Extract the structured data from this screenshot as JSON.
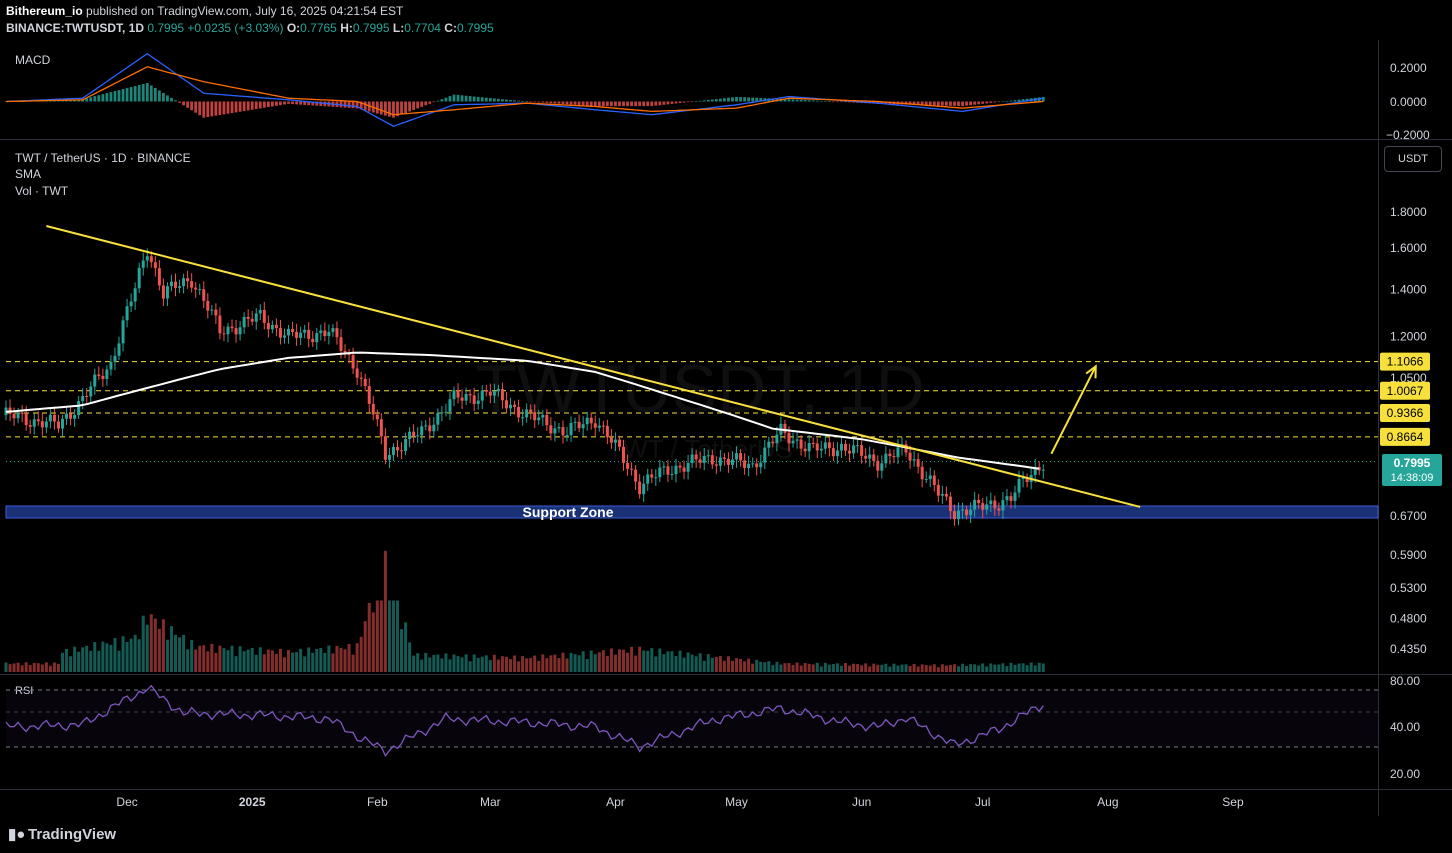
{
  "header": {
    "author": "Bithereum_io",
    "published_text": "published on TradingView.com, July 16, 2025 04:21:54 EST",
    "symbol": "BINANCE:TWTUSDT, 1D",
    "last": "0.7995",
    "change": "+0.0235 (+3.03%)",
    "o_label": "O:",
    "o": "0.7765",
    "h_label": "H:",
    "h": "0.7995",
    "l_label": "L:",
    "l": "0.7704",
    "c_label": "C:",
    "c": "0.7995"
  },
  "macd": {
    "label": "MACD",
    "ticks": [
      "0.2000",
      "0.0000",
      "−0.2000"
    ]
  },
  "main": {
    "title": "TWT / TetherUS · 1D · BINANCE",
    "sma_label": "SMA",
    "vol_label": "Vol · TWT",
    "currency_button": "USDT",
    "watermark": "TWTUSDT, 1D",
    "watermark_sub": "TWT / TetherUS",
    "support_label": "Support Zone",
    "current_price": "0.7995",
    "countdown": "14:38:09",
    "price_ticks": [
      "1.8000",
      "1.6000",
      "1.4000",
      "1.2000",
      "1.0500",
      "0.6700",
      "0.5900",
      "0.5300",
      "0.4800",
      "0.4350"
    ],
    "levels": [
      "1.1066",
      "1.0067",
      "0.9366",
      "0.8664"
    ]
  },
  "rsi": {
    "label": "RSI",
    "ticks": [
      "80.00",
      "40.00",
      "20.00"
    ]
  },
  "time_axis": [
    "Dec",
    "2025",
    "Feb",
    "Mar",
    "Apr",
    "May",
    "Jun",
    "Jul",
    "Aug",
    "Sep"
  ],
  "footer": {
    "brand": "TradingView"
  },
  "colors": {
    "up": "#26a69a",
    "down": "#ef5350",
    "trendline": "#f7e03c",
    "sma": "#ffffff",
    "level_label_bg": "#f7e03c",
    "support_zone": "#1e3a8a",
    "macd_line": "#2962ff",
    "signal_line": "#ff6d00",
    "rsi": "#7e57c2"
  },
  "chart_data": {
    "type": "candlestick",
    "symbol": "TWTUSDT",
    "x_range": [
      "2024-11-01",
      "2025-09-30"
    ],
    "y_range": [
      0.4,
      1.95
    ],
    "y_scale": "log",
    "horizontal_levels": [
      1.1066,
      1.0067,
      0.9366,
      0.8664
    ],
    "support_zone": [
      0.665,
      0.695
    ],
    "trendline": {
      "from": {
        "date": "2024-11-11",
        "price": 1.72
      },
      "to": {
        "date": "2025-08-09",
        "price": 0.69
      }
    },
    "projection_arrow": {
      "from": {
        "date": "2025-07-18",
        "price": 0.82
      },
      "to": {
        "date": "2025-07-29",
        "price": 1.09
      }
    },
    "close_series": [
      {
        "date": "2024-11-01",
        "close": 0.93
      },
      {
        "date": "2024-11-14",
        "close": 0.9
      },
      {
        "date": "2024-11-20",
        "close": 0.98
      },
      {
        "date": "2024-11-27",
        "close": 1.1
      },
      {
        "date": "2024-12-03",
        "close": 1.4
      },
      {
        "date": "2024-12-06",
        "close": 1.6
      },
      {
        "date": "2024-12-10",
        "close": 1.38
      },
      {
        "date": "2024-12-17",
        "close": 1.45
      },
      {
        "date": "2024-12-24",
        "close": 1.22
      },
      {
        "date": "2025-01-03",
        "close": 1.28
      },
      {
        "date": "2025-01-10",
        "close": 1.2
      },
      {
        "date": "2025-01-20",
        "close": 1.22
      },
      {
        "date": "2025-01-27",
        "close": 1.08
      },
      {
        "date": "2025-02-03",
        "close": 0.82
      },
      {
        "date": "2025-02-12",
        "close": 0.88
      },
      {
        "date": "2025-02-20",
        "close": 0.98
      },
      {
        "date": "2025-03-01",
        "close": 1.0
      },
      {
        "date": "2025-03-10",
        "close": 0.93
      },
      {
        "date": "2025-03-20",
        "close": 0.88
      },
      {
        "date": "2025-03-27",
        "close": 0.92
      },
      {
        "date": "2025-04-07",
        "close": 0.74
      },
      {
        "date": "2025-04-14",
        "close": 0.78
      },
      {
        "date": "2025-04-25",
        "close": 0.81
      },
      {
        "date": "2025-05-05",
        "close": 0.79
      },
      {
        "date": "2025-05-12",
        "close": 0.88
      },
      {
        "date": "2025-05-20",
        "close": 0.83
      },
      {
        "date": "2025-05-27",
        "close": 0.84
      },
      {
        "date": "2025-06-05",
        "close": 0.8
      },
      {
        "date": "2025-06-12",
        "close": 0.83
      },
      {
        "date": "2025-06-20",
        "close": 0.72
      },
      {
        "date": "2025-06-24",
        "close": 0.68
      },
      {
        "date": "2025-07-01",
        "close": 0.69
      },
      {
        "date": "2025-07-08",
        "close": 0.71
      },
      {
        "date": "2025-07-12",
        "close": 0.76
      },
      {
        "date": "2025-07-16",
        "close": 0.7995
      }
    ],
    "sma_series": [
      {
        "date": "2024-11-01",
        "value": 0.94
      },
      {
        "date": "2024-11-20",
        "value": 0.96
      },
      {
        "date": "2024-12-10",
        "value": 1.03
      },
      {
        "date": "2024-12-24",
        "value": 1.08
      },
      {
        "date": "2025-01-10",
        "value": 1.12
      },
      {
        "date": "2025-01-27",
        "value": 1.14
      },
      {
        "date": "2025-02-15",
        "value": 1.13
      },
      {
        "date": "2025-03-10",
        "value": 1.11
      },
      {
        "date": "2025-03-27",
        "value": 1.07
      },
      {
        "date": "2025-04-15",
        "value": 0.99
      },
      {
        "date": "2025-05-10",
        "value": 0.89
      },
      {
        "date": "2025-06-01",
        "value": 0.86
      },
      {
        "date": "2025-06-25",
        "value": 0.81
      },
      {
        "date": "2025-07-16",
        "value": 0.78
      }
    ],
    "volume_series": [
      {
        "date": "2024-11-15",
        "vol": 0.35
      },
      {
        "date": "2024-12-03",
        "vol": 0.6
      },
      {
        "date": "2024-12-06",
        "vol": 1.0
      },
      {
        "date": "2024-12-18",
        "vol": 0.45
      },
      {
        "date": "2025-01-10",
        "vol": 0.35
      },
      {
        "date": "2025-01-27",
        "vol": 0.45
      },
      {
        "date": "2025-02-03",
        "vol": 2.0
      },
      {
        "date": "2025-02-10",
        "vol": 0.3
      },
      {
        "date": "2025-03-10",
        "vol": 0.25
      },
      {
        "date": "2025-04-07",
        "vol": 0.4
      },
      {
        "date": "2025-05-12",
        "vol": 0.15
      },
      {
        "date": "2025-06-20",
        "vol": 0.12
      },
      {
        "date": "2025-07-16",
        "vol": 0.15
      }
    ],
    "rsi_series": [
      {
        "date": "2024-11-01",
        "value": 48
      },
      {
        "date": "2024-11-20",
        "value": 50
      },
      {
        "date": "2024-12-06",
        "value": 82
      },
      {
        "date": "2024-12-15",
        "value": 60
      },
      {
        "date": "2025-01-05",
        "value": 58
      },
      {
        "date": "2025-01-20",
        "value": 55
      },
      {
        "date": "2025-01-28",
        "value": 38
      },
      {
        "date": "2025-02-03",
        "value": 27
      },
      {
        "date": "2025-02-18",
        "value": 55
      },
      {
        "date": "2025-03-10",
        "value": 52
      },
      {
        "date": "2025-03-27",
        "value": 48
      },
      {
        "date": "2025-04-07",
        "value": 31
      },
      {
        "date": "2025-04-25",
        "value": 54
      },
      {
        "date": "2025-05-12",
        "value": 64
      },
      {
        "date": "2025-05-27",
        "value": 52
      },
      {
        "date": "2025-06-05",
        "value": 48
      },
      {
        "date": "2025-06-12",
        "value": 56
      },
      {
        "date": "2025-06-24",
        "value": 32
      },
      {
        "date": "2025-07-05",
        "value": 46
      },
      {
        "date": "2025-07-16",
        "value": 68
      }
    ],
    "macd_series": [
      {
        "date": "2024-11-01",
        "macd": 0.0,
        "signal": 0.0
      },
      {
        "date": "2024-11-20",
        "macd": 0.02,
        "signal": 0.01
      },
      {
        "date": "2024-12-06",
        "macd": 0.29,
        "signal": 0.21
      },
      {
        "date": "2024-12-20",
        "macd": 0.05,
        "signal": 0.12
      },
      {
        "date": "2025-01-10",
        "macd": 0.01,
        "signal": 0.02
      },
      {
        "date": "2025-01-27",
        "macd": -0.03,
        "signal": 0.0
      },
      {
        "date": "2025-02-05",
        "macd": -0.15,
        "signal": -0.08
      },
      {
        "date": "2025-02-20",
        "macd": -0.02,
        "signal": -0.05
      },
      {
        "date": "2025-03-10",
        "macd": -0.01,
        "signal": -0.01
      },
      {
        "date": "2025-03-27",
        "macd": -0.05,
        "signal": -0.03
      },
      {
        "date": "2025-04-10",
        "macd": -0.08,
        "signal": -0.06
      },
      {
        "date": "2025-05-01",
        "macd": -0.02,
        "signal": -0.04
      },
      {
        "date": "2025-05-14",
        "macd": 0.03,
        "signal": 0.02
      },
      {
        "date": "2025-06-05",
        "macd": -0.01,
        "signal": 0.0
      },
      {
        "date": "2025-06-26",
        "macd": -0.06,
        "signal": -0.04
      },
      {
        "date": "2025-07-16",
        "macd": 0.02,
        "signal": 0.0
      }
    ]
  }
}
